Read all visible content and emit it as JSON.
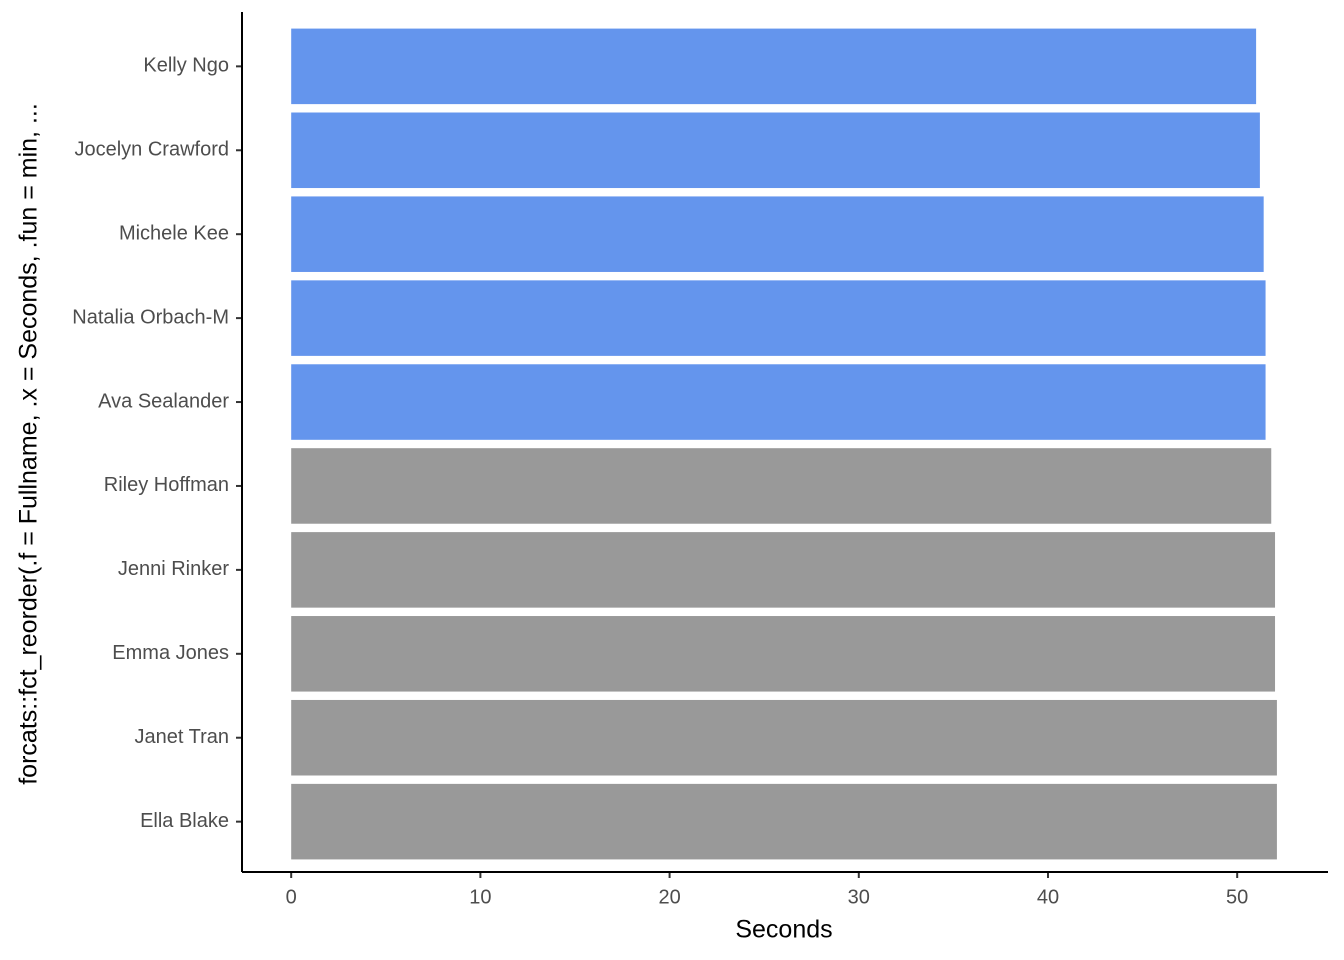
{
  "chart_data": {
    "type": "barh",
    "x_label": "Seconds",
    "y_label": "forcats::fct_reorder(.f = Fullname, .x = Seconds, .fun = min, ...",
    "categories": [
      "Kelly Ngo",
      "Jocelyn Crawford",
      "Michele Kee",
      "Natalia Orbach-M",
      "Ava Sealander",
      "Riley Hoffman",
      "Jenni Rinker",
      "Emma Jones",
      "Janet Tran",
      "Ella Blake"
    ],
    "values": [
      51.0,
      51.2,
      51.4,
      51.5,
      51.5,
      51.8,
      52.0,
      52.0,
      52.1,
      52.1
    ],
    "colors": [
      "#6495ed",
      "#6495ed",
      "#6495ed",
      "#6495ed",
      "#6495ed",
      "#999999",
      "#999999",
      "#999999",
      "#999999",
      "#999999"
    ],
    "xlim": [
      -2.6,
      54.8
    ],
    "xticks": [
      0,
      10,
      20,
      30,
      40,
      50
    ],
    "grid": false
  }
}
